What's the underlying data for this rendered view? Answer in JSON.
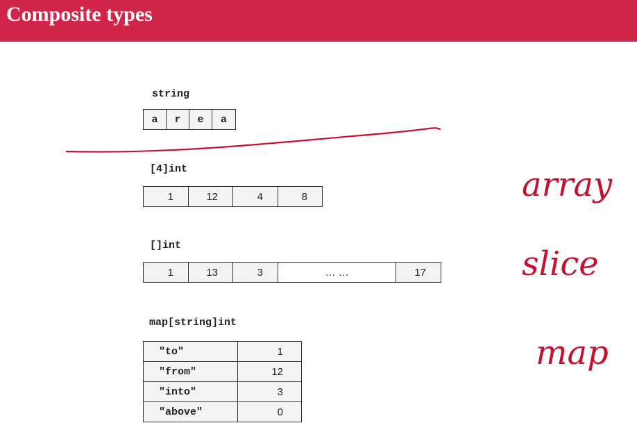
{
  "header": {
    "title": "Composite types"
  },
  "sections": [
    {
      "label": "string",
      "cells": [
        "a",
        "r",
        "e",
        "a"
      ]
    },
    {
      "label": "[4]int",
      "cells": [
        "1",
        "12",
        "4",
        "8"
      ]
    },
    {
      "label": "[]int",
      "cells": [
        "1",
        "13",
        "3",
        "… …",
        "17"
      ]
    },
    {
      "label": "map[string]int",
      "rows": [
        [
          "\"to\"",
          "1"
        ],
        [
          "\"from\"",
          "12"
        ],
        [
          "\"into\"",
          "3"
        ],
        [
          "\"above\"",
          "0"
        ]
      ]
    }
  ],
  "annotations": [
    "array",
    "slice",
    "map"
  ]
}
